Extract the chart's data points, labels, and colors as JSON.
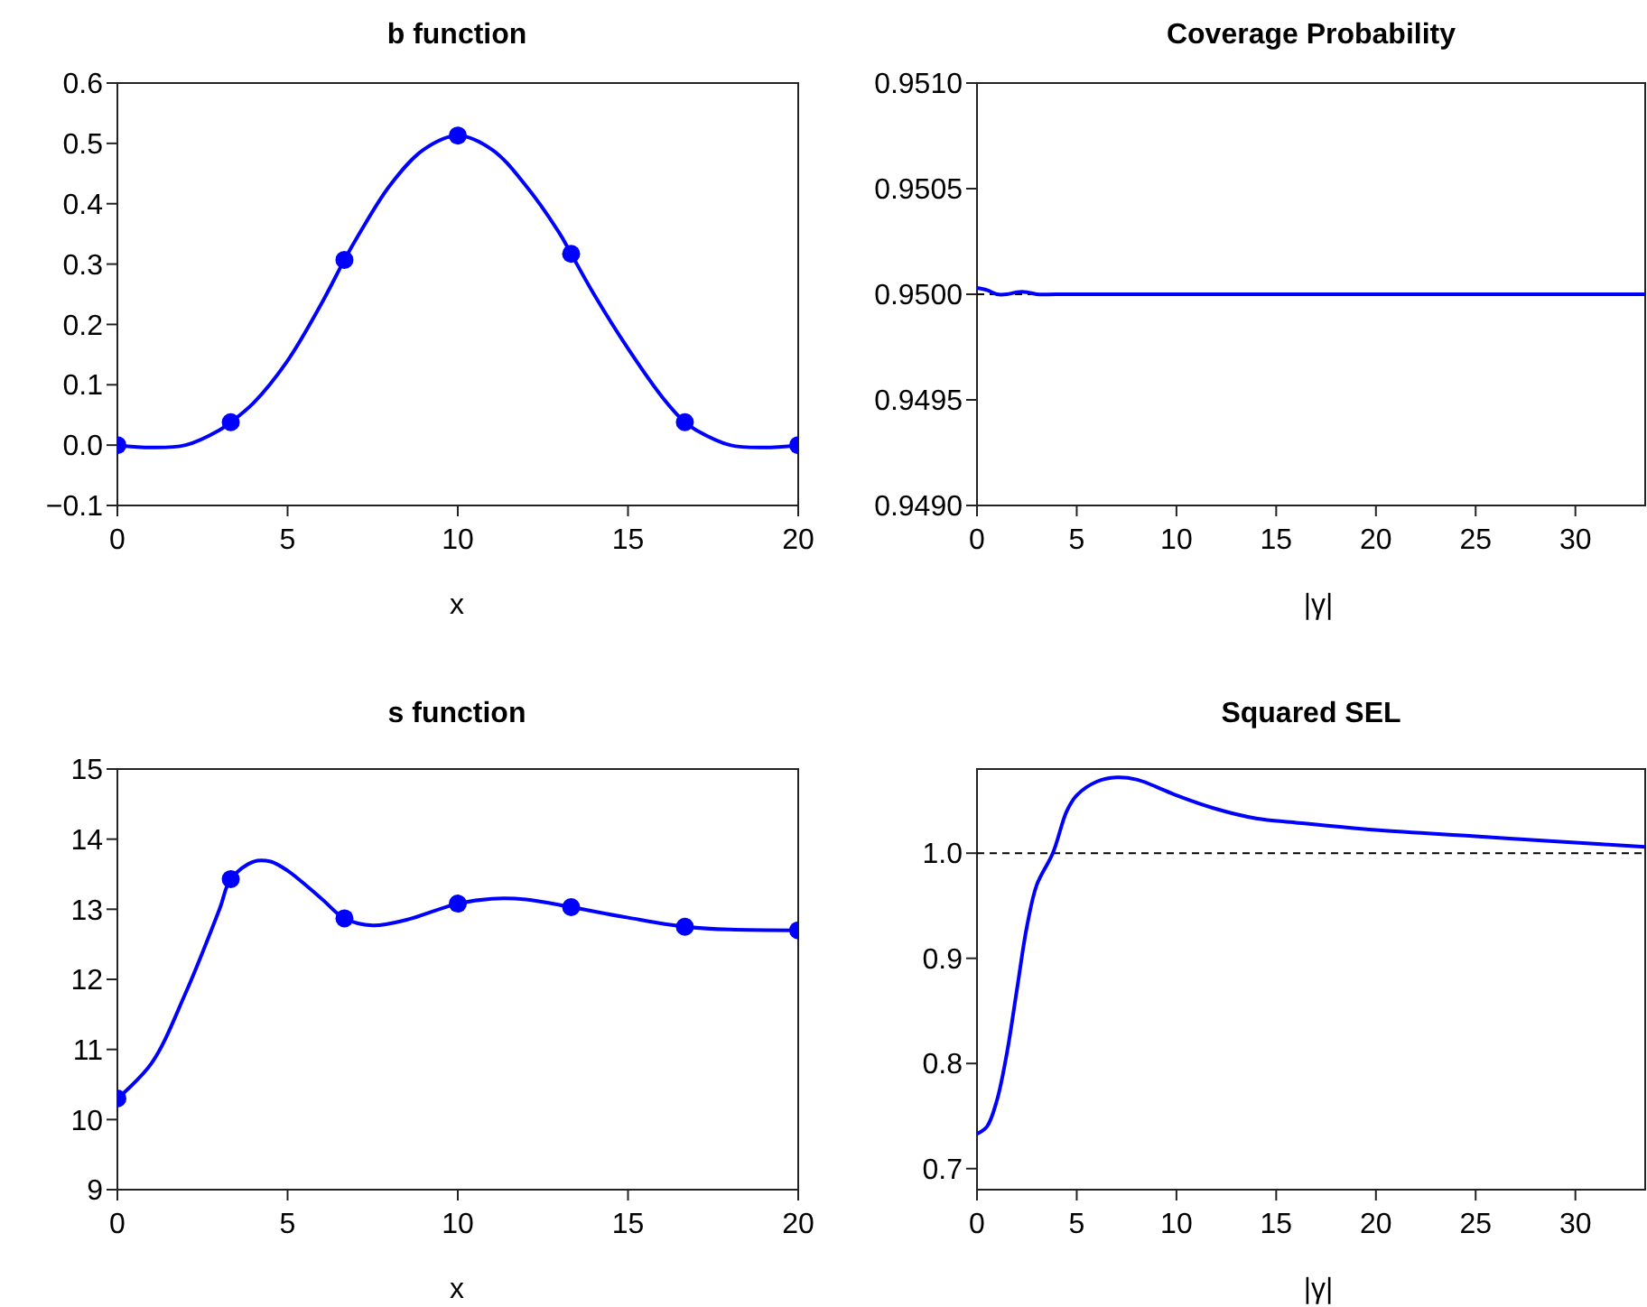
{
  "chart_data": [
    {
      "type": "line",
      "title": "b function",
      "xlabel": "x",
      "xlim": [
        0,
        20
      ],
      "xticks": [
        0,
        5,
        10,
        15,
        20
      ],
      "ylim": [
        -0.1,
        0.6
      ],
      "yticks": [
        {
          "value": -0.1,
          "label": "−0.1"
        },
        {
          "value": 0,
          "label": "0.0"
        },
        0.1,
        0.2,
        0.3,
        0.4,
        0.5,
        0.6
      ],
      "series": [
        {
          "type": "line",
          "color": "#0000ff",
          "x": [
            0,
            1,
            2,
            3,
            3.33,
            4,
            5,
            6,
            6.67,
            7,
            8,
            9,
            10,
            11,
            12,
            13,
            13.33,
            14,
            15,
            16,
            16.67,
            17,
            18,
            19,
            20
          ],
          "values": [
            0,
            -0.004,
            0,
            0.025,
            0.038,
            0.07,
            0.14,
            0.235,
            0.307,
            0.34,
            0.43,
            0.49,
            0.513,
            0.49,
            0.43,
            0.35,
            0.317,
            0.25,
            0.16,
            0.08,
            0.038,
            0.025,
            0,
            -0.004,
            0
          ]
        },
        {
          "type": "scatter",
          "color": "#0000ff",
          "x": [
            0,
            3.33,
            6.67,
            10,
            13.33,
            16.67,
            20
          ],
          "values": [
            0,
            0.038,
            0.307,
            0.513,
            0.317,
            0.038,
            0
          ]
        }
      ]
    },
    {
      "type": "line",
      "title": "Coverage Probability",
      "xlabel": "|γ|",
      "xlim": [
        0,
        33.5
      ],
      "xticks": [
        0,
        5,
        10,
        15,
        20,
        25,
        30
      ],
      "ylim": [
        0.949,
        0.951
      ],
      "yticks": [
        {
          "value": 0.949,
          "label": "0.9490"
        },
        {
          "value": 0.9495,
          "label": "0.9495"
        },
        {
          "value": 0.95,
          "label": "0.9500"
        },
        {
          "value": 0.9505,
          "label": "0.9505"
        },
        {
          "value": 0.951,
          "label": "0.9510"
        }
      ],
      "ref_lines": [
        {
          "axis": "y",
          "value": 0.95,
          "color": "#000000",
          "line_style": "dashed"
        }
      ],
      "series": [
        {
          "type": "line",
          "color": "#0000ff",
          "x": [
            0,
            0.5,
            1,
            1.5,
            2,
            2.5,
            3,
            4,
            10,
            20,
            33.5
          ],
          "values": [
            0.95003,
            0.95002,
            0.95,
            0.95,
            0.95001,
            0.95001,
            0.95,
            0.95,
            0.95,
            0.95,
            0.95
          ]
        }
      ]
    },
    {
      "type": "line",
      "title": "s function",
      "xlabel": "x",
      "xlim": [
        0,
        20
      ],
      "xticks": [
        0,
        5,
        10,
        15,
        20
      ],
      "ylim": [
        9,
        15
      ],
      "yticks": [
        9,
        10,
        11,
        12,
        13,
        14,
        15
      ],
      "series": [
        {
          "type": "line",
          "color": "#0000ff",
          "x": [
            0,
            1,
            2,
            3,
            3.33,
            4,
            4.5,
            5,
            6,
            6.67,
            7.5,
            8.5,
            10,
            11,
            12,
            13.33,
            15,
            16.67,
            18,
            20
          ],
          "values": [
            10.3,
            10.8,
            11.8,
            13,
            13.43,
            13.68,
            13.68,
            13.55,
            13.15,
            12.87,
            12.77,
            12.85,
            13.08,
            13.15,
            13.14,
            13.03,
            12.88,
            12.75,
            12.71,
            12.7
          ]
        },
        {
          "type": "scatter",
          "color": "#0000ff",
          "x": [
            0,
            3.33,
            6.67,
            10,
            13.33,
            16.67,
            20
          ],
          "values": [
            10.3,
            13.43,
            12.87,
            13.08,
            13.03,
            12.75,
            12.7
          ]
        }
      ]
    },
    {
      "type": "line",
      "title": "Squared SEL",
      "xlabel": "|γ|",
      "xlim": [
        0,
        33.5
      ],
      "xticks": [
        0,
        5,
        10,
        15,
        20,
        25,
        30
      ],
      "ylim": [
        0.68,
        1.08
      ],
      "yticks": [
        0.7,
        0.8,
        0.9,
        {
          "value": 1,
          "label": "1.0"
        }
      ],
      "ref_lines": [
        {
          "axis": "y",
          "value": 1,
          "color": "#000000",
          "line_style": "dashed"
        }
      ],
      "series": [
        {
          "type": "line",
          "color": "#0000ff",
          "x": [
            0,
            0.5,
            1,
            1.5,
            2,
            2.5,
            3,
            3.8,
            4.5,
            5,
            6,
            7,
            8,
            9,
            10,
            12,
            14,
            16,
            20,
            25,
            30,
            33.5
          ],
          "values": [
            0.733,
            0.74,
            0.765,
            0.81,
            0.87,
            0.93,
            0.97,
            1,
            1.04,
            1.055,
            1.068,
            1.072,
            1.07,
            1.063,
            1.055,
            1.042,
            1.033,
            1.029,
            1.022,
            1.016,
            1.01,
            1.006
          ]
        }
      ]
    }
  ]
}
